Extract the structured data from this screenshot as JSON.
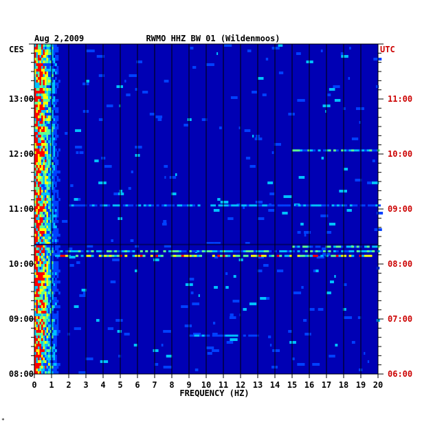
{
  "header": {
    "date": "Aug 2,2009",
    "station": "RWMO HHZ BW 01 (Wildenmoos)"
  },
  "left_zone_label": "CES",
  "right_zone_label": "UTC",
  "footer_mark": "*",
  "colors": {
    "background": "#0000b4",
    "grid": "#000000",
    "utc_text": "#cc0000",
    "text": "#000000"
  },
  "chart_data": {
    "type": "heatmap",
    "xlabel": "FREQUENCY (HZ)",
    "x_ticks": [
      "0",
      "1",
      "2",
      "3",
      "4",
      "5",
      "6",
      "7",
      "8",
      "9",
      "10",
      "11",
      "12",
      "13",
      "14",
      "15",
      "16",
      "17",
      "18",
      "19",
      "20"
    ],
    "xlim": [
      0,
      20
    ],
    "y_range_hours": [
      8,
      14
    ],
    "left_ticks": [
      {
        "hour": 13,
        "label": "13:00"
      },
      {
        "hour": 12,
        "label": "12:00"
      },
      {
        "hour": 11,
        "label": "11:00"
      },
      {
        "hour": 10,
        "label": "10:00"
      },
      {
        "hour": 9,
        "label": "09:00"
      },
      {
        "hour": 8,
        "label": "08:00"
      }
    ],
    "right_ticks": [
      {
        "hour": 13,
        "label": "11:00"
      },
      {
        "hour": 12,
        "label": "10:00"
      },
      {
        "hour": 11,
        "label": "09:00"
      },
      {
        "hour": 10,
        "label": "08:00"
      },
      {
        "hour": 9,
        "label": "07:00"
      },
      {
        "hour": 8,
        "label": "06:00"
      }
    ],
    "colormap": [
      "#0000b4",
      "#0040ff",
      "#00c0ff",
      "#60ff90",
      "#ffff00",
      "#ff0000"
    ]
  }
}
